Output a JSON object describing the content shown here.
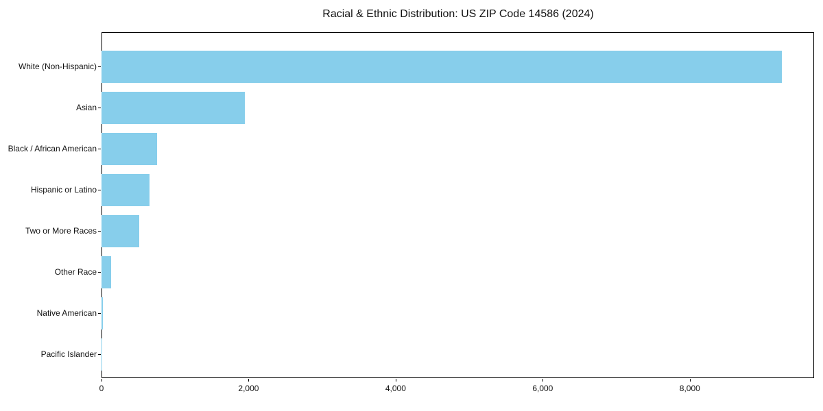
{
  "chart_data": {
    "type": "bar",
    "orientation": "horizontal",
    "title": "Racial & Ethnic Distribution: US ZIP Code 14586 (2024)",
    "categories": [
      "White (Non-Hispanic)",
      "Asian",
      "Black / African American",
      "Hispanic or Latino",
      "Two or More Races",
      "Other Race",
      "Native American",
      "Pacific Islander"
    ],
    "values": [
      9250,
      1950,
      755,
      650,
      515,
      130,
      18,
      4
    ],
    "xlabel": "",
    "ylabel": "",
    "xlim": [
      0,
      9690
    ],
    "x_ticks": [
      0,
      2000,
      4000,
      6000,
      8000
    ],
    "x_tick_labels": [
      "0",
      "2,000",
      "4,000",
      "6,000",
      "8,000"
    ],
    "bar_color": "#87CEEB",
    "grid": false,
    "legend": false,
    "background_color": "#ffffff",
    "spine_color": "#000000"
  }
}
